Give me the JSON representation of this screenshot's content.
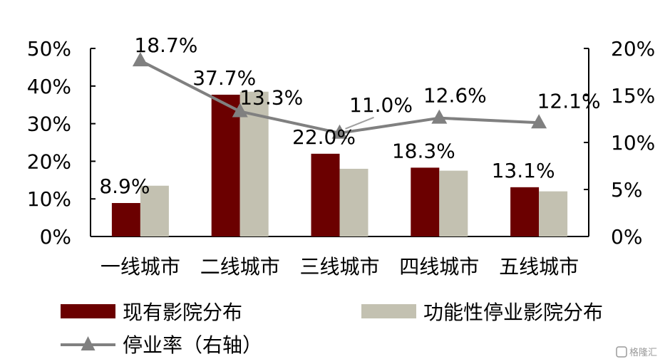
{
  "chart_data": {
    "type": "bar",
    "categories": [
      "一线城市",
      "二线城市",
      "三线城市",
      "四线城市",
      "五线城市"
    ],
    "series": [
      {
        "name": "现有影院分布",
        "kind": "bar",
        "axis": "left",
        "color": "#6b0000",
        "values": [
          8.9,
          37.7,
          22.0,
          18.3,
          13.1
        ],
        "labels": [
          "8.9%",
          "37.7%",
          "22.0%",
          "18.3%",
          "13.1%"
        ]
      },
      {
        "name": "功能性停业影院分布",
        "kind": "bar",
        "axis": "left",
        "color": "#c3c1b1",
        "values": [
          13.5,
          38.5,
          18.0,
          17.5,
          12.0
        ]
      },
      {
        "name": "停业率（右轴）",
        "kind": "line",
        "axis": "right",
        "color": "#808080",
        "values": [
          18.7,
          13.3,
          11.0,
          12.6,
          12.1
        ],
        "labels": [
          "18.7%",
          "13.3%",
          "11.0%",
          "12.6%",
          "12.1%"
        ]
      }
    ],
    "y_left": {
      "min": 0,
      "max": 50,
      "ticks": [
        "0%",
        "10%",
        "20%",
        "30%",
        "40%",
        "50%"
      ]
    },
    "y_right": {
      "min": 0,
      "max": 20,
      "ticks": [
        "0%",
        "5%",
        "10%",
        "15%",
        "20%"
      ]
    },
    "legend_position": "bottom"
  },
  "watermark": {
    "text": "格隆汇"
  }
}
